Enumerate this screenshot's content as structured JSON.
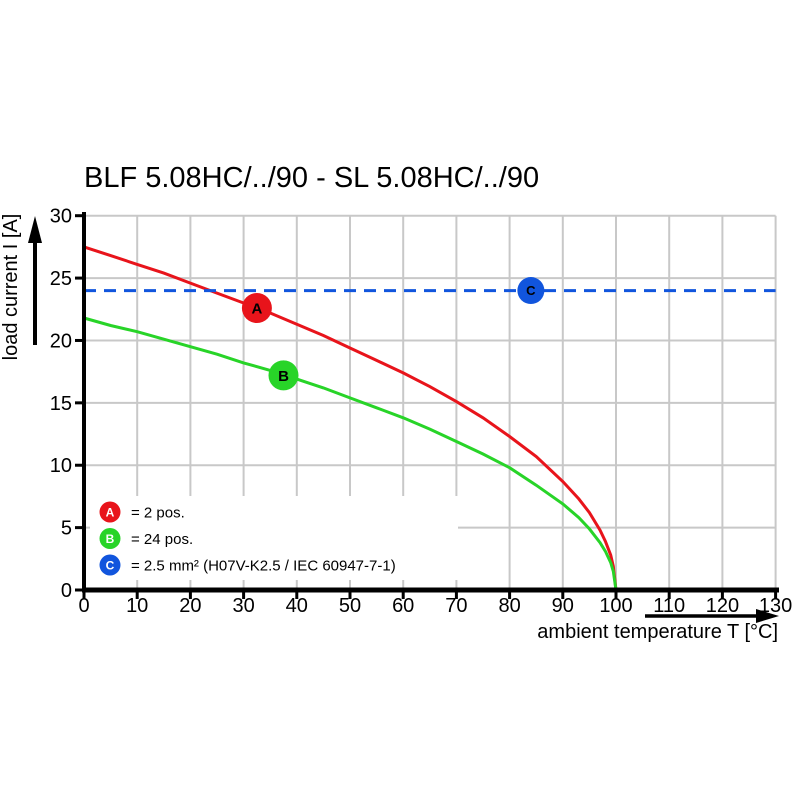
{
  "title": "BLF 5.08HC/../90 - SL 5.08HC/../90",
  "chart_data": {
    "type": "line",
    "title": "BLF 5.08HC/../90 - SL 5.08HC/../90",
    "xlabel": "ambient temperature T [°C]",
    "ylabel": "load current I [A]",
    "xlim": [
      0,
      130
    ],
    "ylim": [
      0,
      30
    ],
    "x_ticks": [
      0,
      10,
      20,
      30,
      40,
      50,
      60,
      70,
      80,
      90,
      100,
      110,
      120,
      130
    ],
    "y_ticks": [
      0,
      5,
      10,
      15,
      20,
      25,
      30
    ],
    "grid": true,
    "grid_color": "#c8c8c8",
    "axis_color": "#000000",
    "background_color": "#ffffff",
    "legend_position": "lower-left-inside",
    "series": [
      {
        "name": "A",
        "legend_label": "= 2 pos.",
        "color": "#e8141b",
        "style": "solid",
        "marker": {
          "x": 32.5,
          "y": 22.6
        },
        "points": [
          [
            0,
            27.5
          ],
          [
            5,
            26.8
          ],
          [
            10,
            26.1
          ],
          [
            15,
            25.4
          ],
          [
            20,
            24.6
          ],
          [
            25,
            23.8
          ],
          [
            30,
            23.0
          ],
          [
            35,
            22.2
          ],
          [
            40,
            21.3
          ],
          [
            45,
            20.4
          ],
          [
            50,
            19.4
          ],
          [
            55,
            18.4
          ],
          [
            60,
            17.4
          ],
          [
            65,
            16.3
          ],
          [
            70,
            15.1
          ],
          [
            75,
            13.8
          ],
          [
            80,
            12.3
          ],
          [
            85,
            10.7
          ],
          [
            90,
            8.7
          ],
          [
            93,
            7.3
          ],
          [
            95,
            6.2
          ],
          [
            97,
            4.8
          ],
          [
            98,
            3.9
          ],
          [
            99,
            2.8
          ],
          [
            99.5,
            1.9
          ],
          [
            100,
            0
          ]
        ]
      },
      {
        "name": "B",
        "legend_label": "= 24 pos.",
        "color": "#28d428",
        "style": "solid",
        "marker": {
          "x": 37.5,
          "y": 17.2
        },
        "points": [
          [
            0,
            21.8
          ],
          [
            5,
            21.2
          ],
          [
            10,
            20.7
          ],
          [
            15,
            20.1
          ],
          [
            20,
            19.5
          ],
          [
            25,
            18.9
          ],
          [
            30,
            18.2
          ],
          [
            35,
            17.6
          ],
          [
            40,
            16.9
          ],
          [
            45,
            16.2
          ],
          [
            50,
            15.4
          ],
          [
            55,
            14.6
          ],
          [
            60,
            13.8
          ],
          [
            65,
            12.9
          ],
          [
            70,
            11.9
          ],
          [
            75,
            10.9
          ],
          [
            80,
            9.8
          ],
          [
            85,
            8.4
          ],
          [
            90,
            6.9
          ],
          [
            93,
            5.8
          ],
          [
            95,
            4.9
          ],
          [
            97,
            3.8
          ],
          [
            98,
            3.1
          ],
          [
            99,
            2.2
          ],
          [
            99.5,
            1.5
          ],
          [
            100,
            0
          ]
        ]
      },
      {
        "name": "C",
        "legend_label": "= 2.5 mm² (H07V-K2.5 / IEC 60947-7-1)",
        "color": "#1155dd",
        "style": "dashed",
        "marker": {
          "x": 84,
          "y": 24
        },
        "points": [
          [
            0,
            24
          ],
          [
            130,
            24
          ]
        ]
      }
    ]
  }
}
